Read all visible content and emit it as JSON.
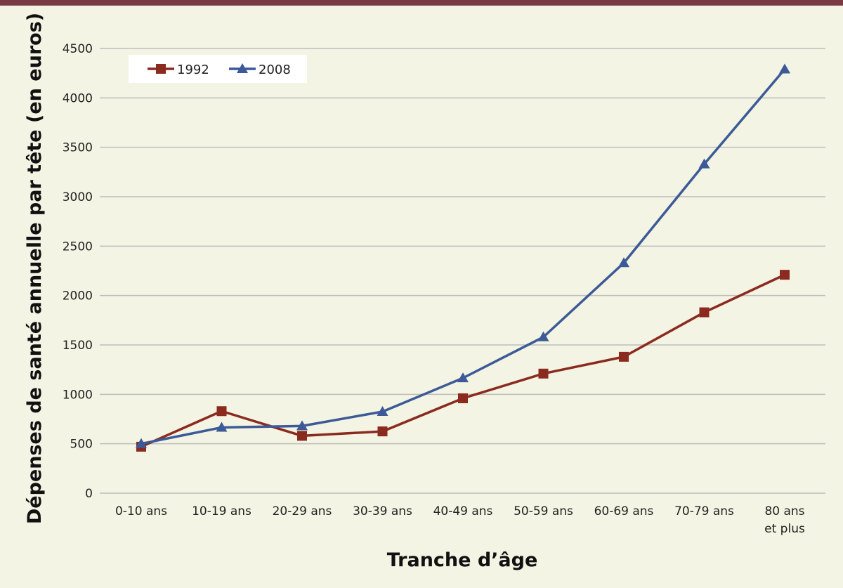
{
  "chart_data": {
    "type": "line",
    "categories": [
      "0-10 ans",
      "10-19 ans",
      "20-29 ans",
      "30-39 ans",
      "40-49 ans",
      "50-59 ans",
      "60-69 ans",
      "70-79 ans",
      "80 ans et plus"
    ],
    "category_lines": [
      [
        "0-10 ans"
      ],
      [
        "10-19 ans"
      ],
      [
        "20-29 ans"
      ],
      [
        "30-39 ans"
      ],
      [
        "40-49 ans"
      ],
      [
        "50-59 ans"
      ],
      [
        "60-69 ans"
      ],
      [
        "70-79 ans"
      ],
      [
        "80 ans",
        "et plus"
      ]
    ],
    "series": [
      {
        "name": "1992",
        "color": "#8b2a1f",
        "marker": "square",
        "values": [
          470,
          830,
          580,
          625,
          960,
          1210,
          1380,
          1830,
          2210
        ]
      },
      {
        "name": "2008",
        "color": "#3d5a98",
        "marker": "triangle",
        "values": [
          500,
          665,
          680,
          825,
          1165,
          1580,
          2330,
          3330,
          4290
        ]
      }
    ],
    "xlabel": "Tranche d’âge",
    "ylabel": "Dépenses de santé annuelle par tête (en euros)",
    "ylim": [
      0,
      4500
    ],
    "yticks": [
      0,
      500,
      1000,
      1500,
      2000,
      2500,
      3000,
      3500,
      4000,
      4500
    ],
    "grid": true,
    "legend_position": "top-left"
  }
}
